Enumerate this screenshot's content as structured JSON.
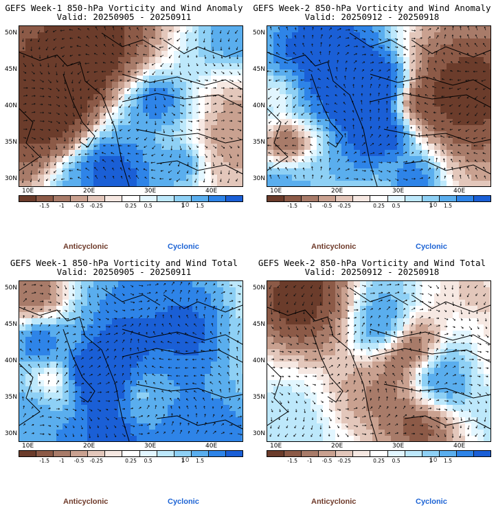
{
  "panels": [
    {
      "title": "GEFS Week-1 850-hPa Vorticity and Wind Anomaly",
      "valid": "Valid: 20250905 - 20250911",
      "seed": 11,
      "blueBias": 0.08
    },
    {
      "title": "GEFS Week-2 850-hPa Vorticity and Wind Anomaly",
      "valid": "Valid: 20250912 - 20250918",
      "seed": 23,
      "blueBias": -0.05
    },
    {
      "title": "GEFS Week-1 850-hPa Vorticity and Wind Total",
      "valid": "Valid: 20250905 - 20250911",
      "seed": 37,
      "blueBias": 0.02
    },
    {
      "title": "GEFS Week-2 850-hPa Vorticity and Wind Total",
      "valid": "Valid: 20250912 - 20250918",
      "seed": 51,
      "blueBias": 0.06
    }
  ],
  "axes": {
    "lat_labels": [
      "50N",
      "45N",
      "40N",
      "35N",
      "30N"
    ],
    "lon_labels": [
      "10E",
      "20E",
      "30E",
      "40E"
    ]
  },
  "colorbar": {
    "colors": [
      "#6b3c2b",
      "#8c5a47",
      "#a87b69",
      "#c9a190",
      "#e3c7bb",
      "#f6e8e2",
      "#ffffff",
      "#e2f6ff",
      "#bde8fb",
      "#8ed0f5",
      "#5aaeee",
      "#2e84e8",
      "#1a5fd6"
    ],
    "ticks": [
      "-1.5",
      "-1",
      "-0.5",
      "-0.25",
      "0.25",
      "0.5",
      "1",
      "1.5"
    ],
    "multiplier": "10"
  },
  "labels": {
    "anticyclonic": "Anticyclonic",
    "cyclonic": "Cyclonic"
  }
}
